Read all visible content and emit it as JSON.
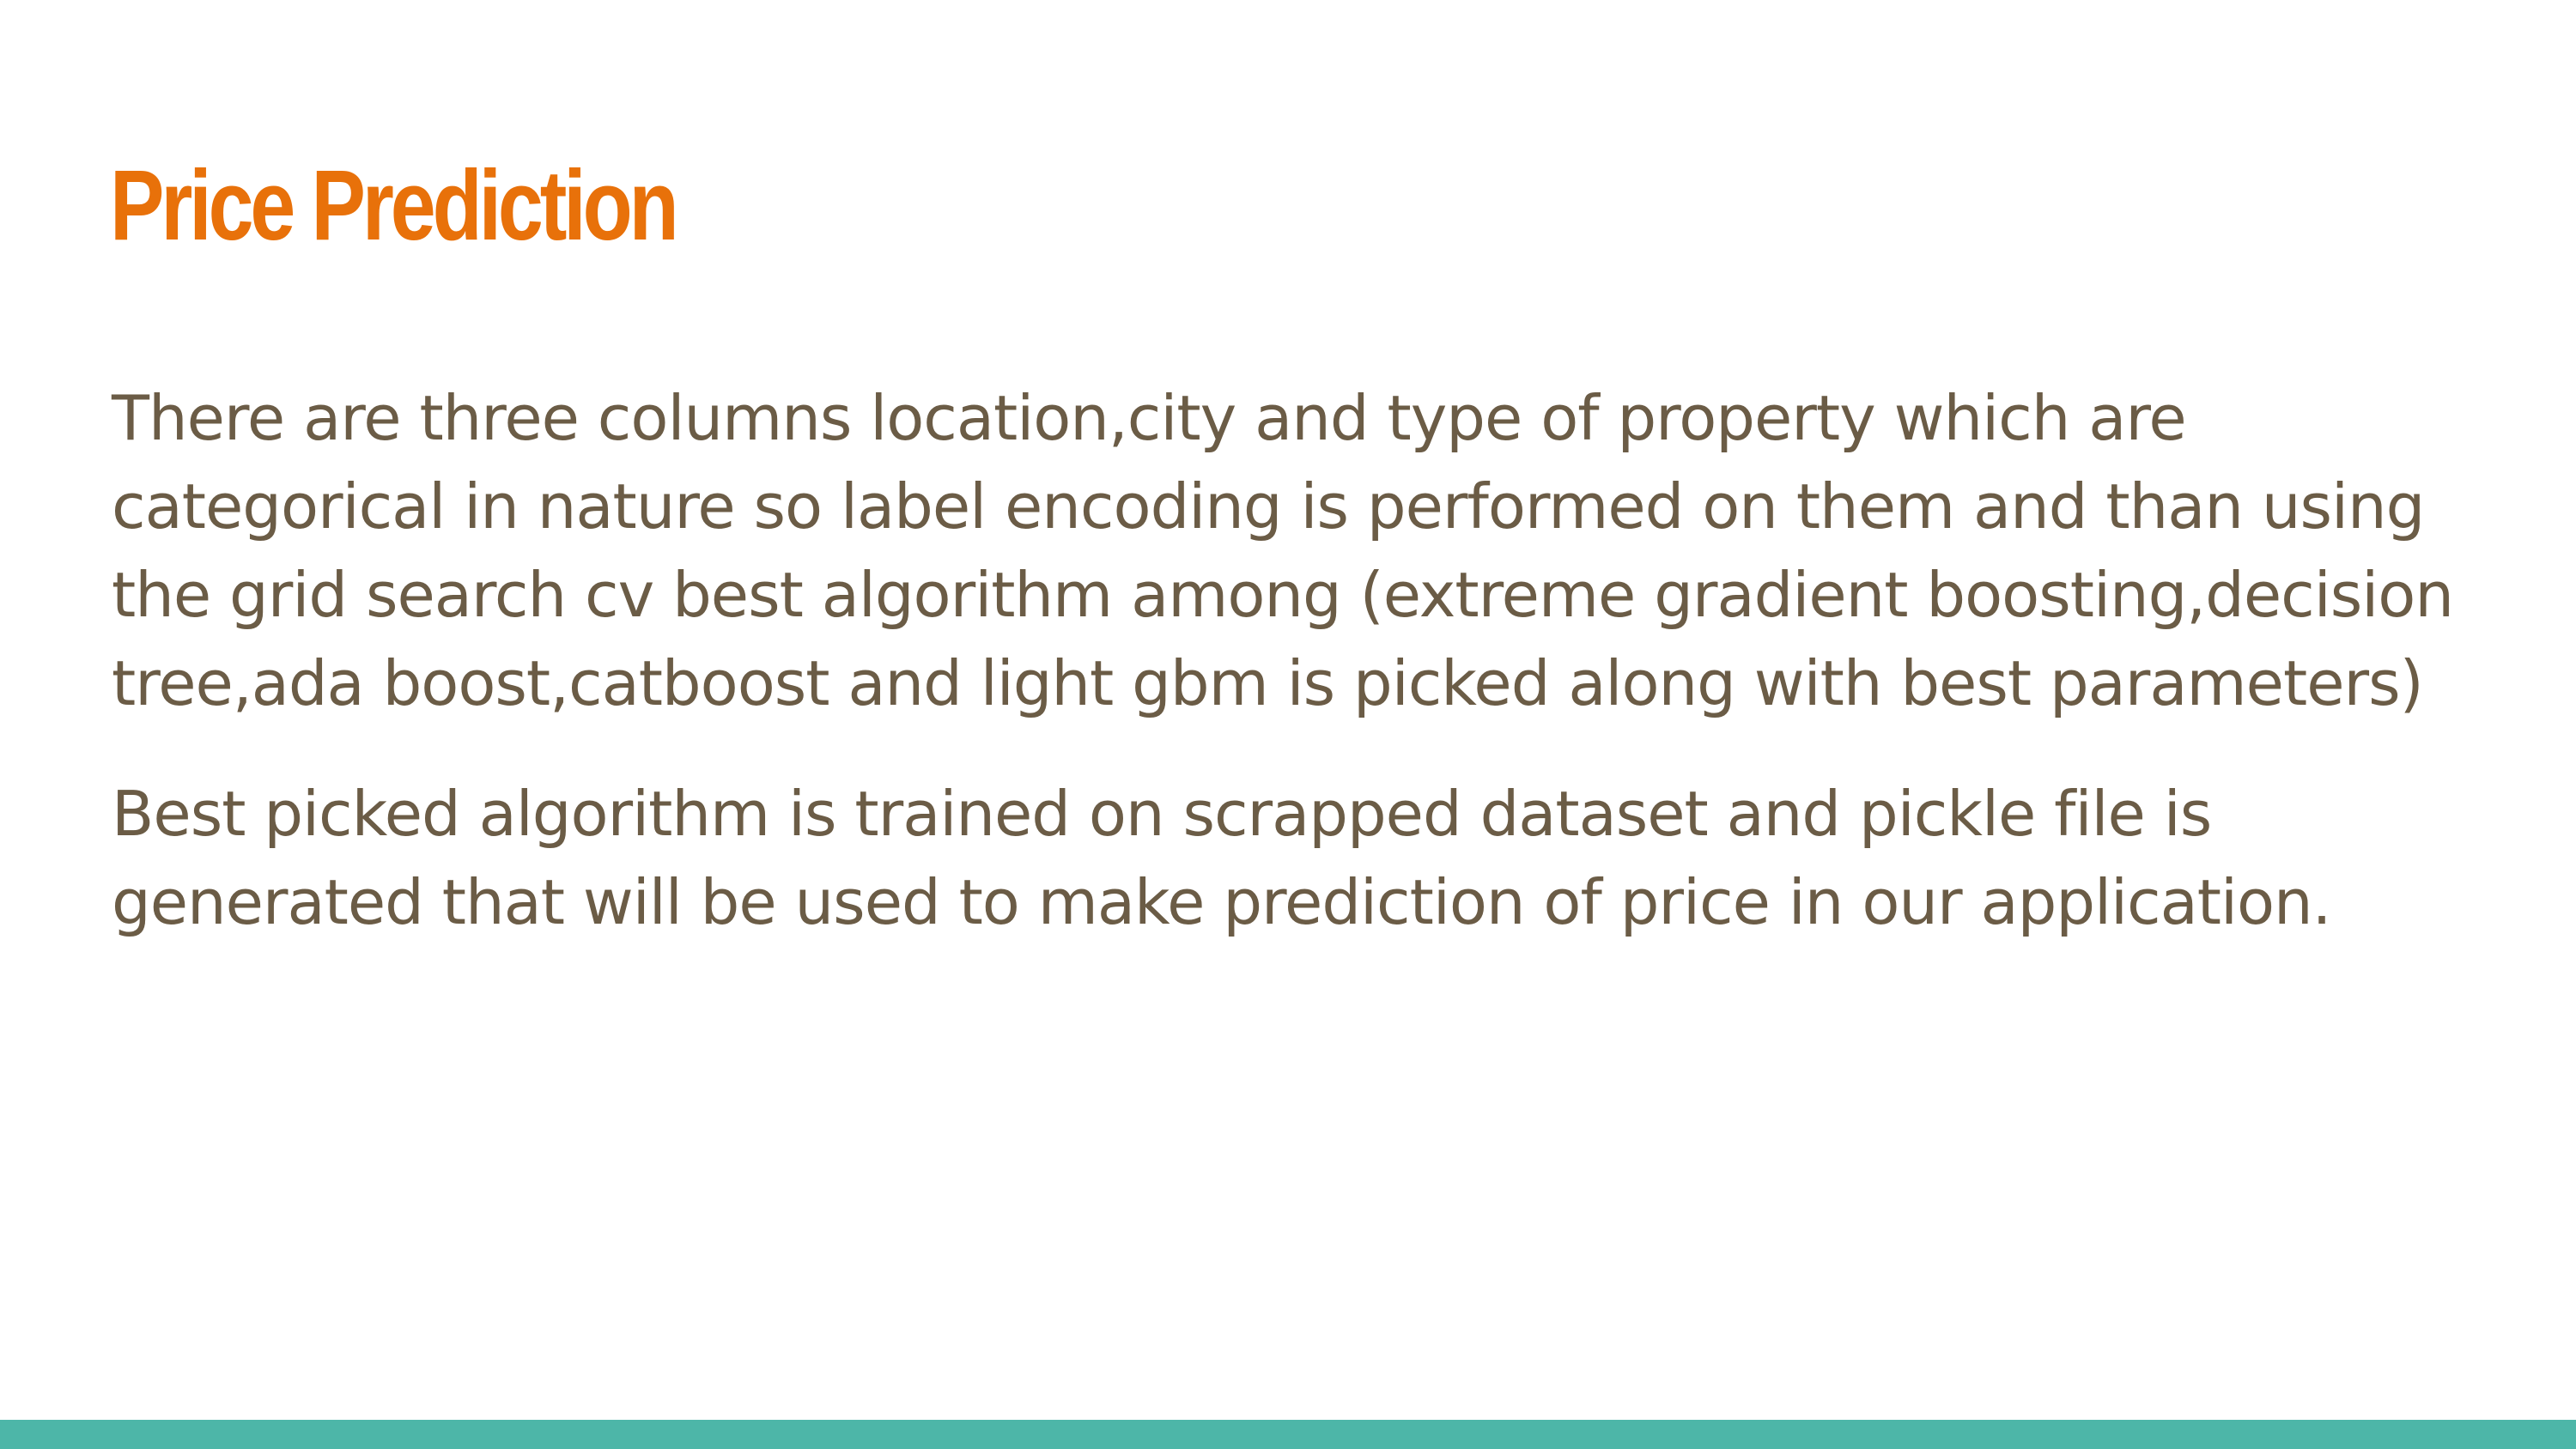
{
  "colors": {
    "title": "#e8710a",
    "body_text": "#6b5c46",
    "accent_bar": "#4db6a8",
    "background": "#ffffff"
  },
  "slide": {
    "title": "Price Prediction",
    "paragraphs": [
      {
        "lines": [
          "There are three columns location,city and type of property which are",
          "categorical in nature so label encoding is performed on them and than using",
          "the grid search cv best algorithm among (extreme gradient boosting,decision",
          "tree,ada boost,catboost and light gbm is picked along with best parameters)"
        ]
      },
      {
        "lines": [
          "Best picked algorithm is trained on scrapped dataset and pickle file is",
          "generated that will be used to  make prediction of price in our application."
        ]
      }
    ]
  }
}
